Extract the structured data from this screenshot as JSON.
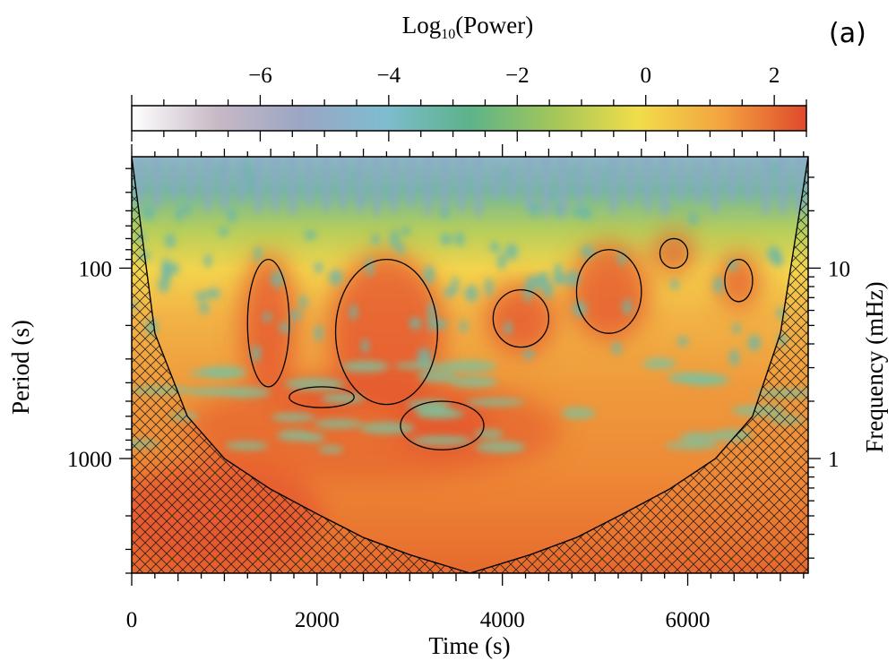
{
  "panel_label": "(a)",
  "chart_data": {
    "type": "heatmap",
    "title": "",
    "xlabel": "Time (s)",
    "ylabel": "Period (s)",
    "y2label": "Frequency (mHz)",
    "colorbar": {
      "label_main": "Log",
      "label_sub": "10",
      "label_rest": "(Power)",
      "range": [
        -8,
        2.5
      ],
      "ticks": [
        -6,
        -4,
        -2,
        0,
        2
      ],
      "tick_labels": [
        "−6",
        "−4",
        "−2",
        "0",
        "2"
      ],
      "colors": [
        "#ffffff",
        "#c8b9c6",
        "#9ba6c4",
        "#7fbcd0",
        "#5cb38a",
        "#a3c65a",
        "#f1dd4a",
        "#f3a340",
        "#e0492b"
      ]
    },
    "x_ticks": [
      0,
      2000,
      4000,
      6000
    ],
    "x_tick_labels": [
      "0",
      "2000",
      "4000",
      "6000"
    ],
    "xlim": [
      0,
      7300
    ],
    "y_scale": "log",
    "y_ticks": [
      100,
      1000
    ],
    "y_tick_labels": [
      "100",
      "1000"
    ],
    "ylim": [
      26,
      4000
    ],
    "y2_ticks": [
      10,
      1
    ],
    "y2_tick_labels": [
      "10",
      "1"
    ],
    "cone_of_influence": {
      "x": [
        0,
        250,
        600,
        1000,
        1500,
        2000,
        2500,
        3000,
        3650,
        4300,
        4800,
        5300,
        5800,
        6300,
        6700,
        7000,
        7300
      ],
      "period": [
        26,
        220,
        600,
        1000,
        1450,
        1950,
        2600,
        3200,
        4000,
        3200,
        2600,
        1950,
        1450,
        1000,
        600,
        220,
        26
      ]
    },
    "significant_regions": [
      {
        "t": [
          1250,
          1700
        ],
        "period": [
          90,
          420
        ]
      },
      {
        "t": [
          2200,
          3300
        ],
        "period": [
          90,
          520
        ]
      },
      {
        "t": [
          1700,
          2400
        ],
        "period": [
          420,
          540
        ]
      },
      {
        "t": [
          2900,
          3800
        ],
        "period": [
          500,
          900
        ]
      },
      {
        "t": [
          3900,
          4500
        ],
        "period": [
          130,
          260
        ]
      },
      {
        "t": [
          4800,
          5500
        ],
        "period": [
          80,
          220
        ]
      },
      {
        "t": [
          5700,
          6000
        ],
        "period": [
          70,
          100
        ]
      },
      {
        "t": [
          6400,
          6700
        ],
        "period": [
          90,
          150
        ]
      }
    ],
    "grid": false
  }
}
